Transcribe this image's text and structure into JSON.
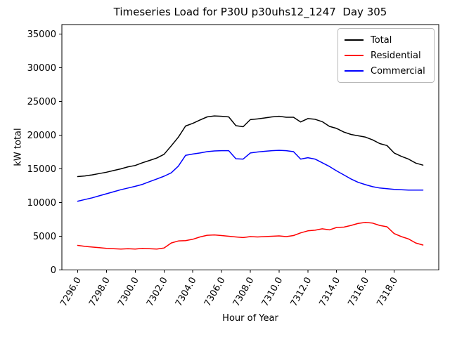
{
  "chart_data": {
    "type": "line",
    "title": "Timeseries Load for P30U p30uhs12_1247  Day 305",
    "xlabel": "Hour of Year",
    "ylabel": "kW total",
    "xlim": [
      7294.9,
      7321.1
    ],
    "ylim": [
      0,
      36400
    ],
    "grid": false,
    "legend_position": "upper right",
    "x_ticks": [
      7296,
      7298,
      7300,
      7302,
      7304,
      7306,
      7308,
      7310,
      7312,
      7314,
      7316,
      7318
    ],
    "x_tick_labels": [
      "7296.0",
      "7298.0",
      "7300.0",
      "7302.0",
      "7304.0",
      "7306.0",
      "7308.0",
      "7310.0",
      "7312.0",
      "7314.0",
      "7316.0",
      "7318.0"
    ],
    "y_ticks": [
      0,
      5000,
      10000,
      15000,
      20000,
      25000,
      30000,
      35000
    ],
    "y_tick_labels": [
      "0",
      "5000",
      "10000",
      "15000",
      "20000",
      "25000",
      "30000",
      "35000"
    ],
    "x": [
      7296,
      7296.5,
      7297,
      7297.5,
      7298,
      7298.5,
      7299,
      7299.5,
      7300,
      7300.5,
      7301,
      7301.5,
      7302,
      7302.5,
      7303,
      7303.5,
      7304,
      7304.5,
      7305,
      7305.5,
      7306,
      7306.5,
      7307,
      7307.5,
      7308,
      7308.5,
      7309,
      7309.5,
      7310,
      7310.5,
      7311,
      7311.5,
      7312,
      7312.5,
      7313,
      7313.5,
      7314,
      7314.5,
      7315,
      7315.5,
      7316,
      7316.5,
      7317,
      7317.5,
      7318,
      7318.5,
      7319,
      7319.5,
      7320
    ],
    "series": [
      {
        "name": "Total",
        "color": "#000000",
        "values": [
          13850,
          13950,
          14100,
          14300,
          14500,
          14750,
          15000,
          15300,
          15500,
          15900,
          16250,
          16600,
          17150,
          18400,
          19700,
          21350,
          21750,
          22250,
          22700,
          22850,
          22800,
          22700,
          21400,
          21250,
          22300,
          22400,
          22550,
          22700,
          22800,
          22650,
          22650,
          21950,
          22450,
          22350,
          22000,
          21300,
          21000,
          20450,
          20100,
          19900,
          19700,
          19300,
          18750,
          18450,
          17350,
          16850,
          16450,
          15850,
          15550
        ]
      },
      {
        "name": "Residential",
        "color": "#ff0000",
        "values": [
          3650,
          3500,
          3400,
          3300,
          3200,
          3150,
          3100,
          3150,
          3100,
          3200,
          3150,
          3100,
          3250,
          4000,
          4300,
          4350,
          4550,
          4900,
          5150,
          5200,
          5100,
          5000,
          4900,
          4800,
          4950,
          4900,
          4950,
          5000,
          5050,
          4950,
          5100,
          5500,
          5800,
          5900,
          6100,
          5950,
          6300,
          6350,
          6600,
          6900,
          7050,
          6950,
          6600,
          6400,
          5400,
          4950,
          4600,
          4000,
          3700
        ]
      },
      {
        "name": "Commercial",
        "color": "#0000ff",
        "values": [
          10200,
          10450,
          10700,
          11000,
          11300,
          11600,
          11900,
          12150,
          12400,
          12700,
          13100,
          13500,
          13900,
          14400,
          15400,
          17000,
          17200,
          17350,
          17550,
          17650,
          17700,
          17700,
          16500,
          16450,
          17350,
          17500,
          17600,
          17700,
          17750,
          17700,
          17550,
          16450,
          16650,
          16450,
          15900,
          15350,
          14700,
          14100,
          13500,
          13000,
          12650,
          12350,
          12150,
          12050,
          11950,
          11900,
          11850,
          11850,
          11850
        ]
      }
    ]
  }
}
